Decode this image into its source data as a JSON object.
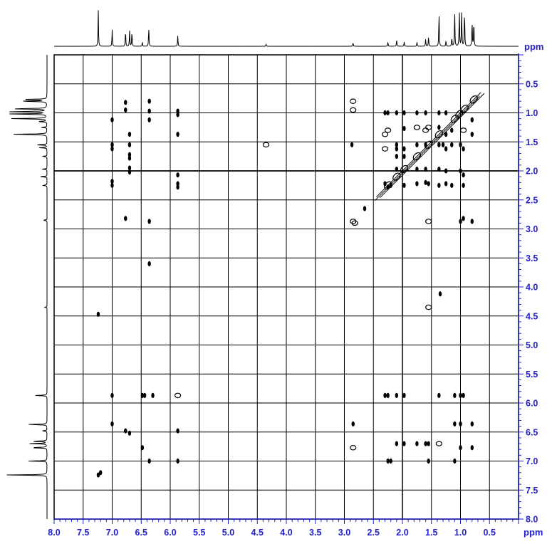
{
  "chart_data": {
    "type": "heatmap",
    "subtype": "2D NMR COSY contour plot with 1D projections",
    "x_axis": {
      "label": "ppm",
      "range": [
        8.0,
        0.0
      ],
      "ticks": [
        8.0,
        7.5,
        7.0,
        6.5,
        6.0,
        5.5,
        5.0,
        4.5,
        4.0,
        3.5,
        3.0,
        2.5,
        2.0,
        1.5,
        1.0,
        0.5
      ],
      "tick_labels": [
        "8.0",
        "7.5",
        "7.0",
        "6.5",
        "6.0",
        "5.5",
        "5.0",
        "4.5",
        "4.0",
        "3.5",
        "3.0",
        "2.5",
        "2.0",
        "1.5",
        "1.0",
        "0.5"
      ]
    },
    "y_axis": {
      "label": "ppm",
      "range": [
        0.0,
        8.0
      ],
      "ticks": [
        0.5,
        1.0,
        1.5,
        2.0,
        2.5,
        3.0,
        3.5,
        4.0,
        4.5,
        5.0,
        5.5,
        6.0,
        6.5,
        7.0,
        7.5,
        8.0
      ],
      "tick_labels": [
        "0.5",
        "1.0",
        "1.5",
        "2.0",
        "2.5",
        "3.0",
        "3.5",
        "4.0",
        "4.5",
        "5.0",
        "5.5",
        "6.0",
        "6.5",
        "7.0",
        "7.5",
        "8.0"
      ]
    },
    "grid": true,
    "axis_color": "#2222cc",
    "contour_color": "#000000",
    "projection_peaks": [
      {
        "ppm": 7.24,
        "h": 1.0
      },
      {
        "ppm": 7.0,
        "h": 0.45
      },
      {
        "ppm": 6.77,
        "h": 0.45
      },
      {
        "ppm": 6.7,
        "h": 0.42
      },
      {
        "ppm": 6.66,
        "h": 0.42
      },
      {
        "ppm": 6.48,
        "h": 0.12
      },
      {
        "ppm": 6.37,
        "h": 0.52
      },
      {
        "ppm": 5.87,
        "h": 0.3
      },
      {
        "ppm": 4.35,
        "h": 0.05
      },
      {
        "ppm": 2.85,
        "h": 0.1
      },
      {
        "ppm": 2.25,
        "h": 0.12
      },
      {
        "ppm": 2.1,
        "h": 0.18
      },
      {
        "ppm": 1.97,
        "h": 0.12
      },
      {
        "ppm": 1.75,
        "h": 0.12
      },
      {
        "ppm": 1.6,
        "h": 0.2
      },
      {
        "ppm": 1.55,
        "h": 0.28
      },
      {
        "ppm": 1.37,
        "h": 0.95
      },
      {
        "ppm": 1.25,
        "h": 0.15
      },
      {
        "ppm": 1.15,
        "h": 0.25
      },
      {
        "ppm": 1.1,
        "h": 1.0
      },
      {
        "ppm": 1.02,
        "h": 1.0
      },
      {
        "ppm": 0.98,
        "h": 1.0
      },
      {
        "ppm": 0.93,
        "h": 1.0
      },
      {
        "ppm": 0.8,
        "h": 0.72
      },
      {
        "ppm": 0.77,
        "h": 0.72
      }
    ],
    "cross_peaks": [
      {
        "x": 6.77,
        "y": 0.82
      },
      {
        "x": 6.77,
        "y": 0.95
      },
      {
        "x": 6.36,
        "y": 0.8
      },
      {
        "x": 6.36,
        "y": 0.97
      },
      {
        "x": 5.87,
        "y": 0.97
      },
      {
        "x": 5.87,
        "y": 1.03
      },
      {
        "x": 7.0,
        "y": 1.12
      },
      {
        "x": 6.7,
        "y": 1.37
      },
      {
        "x": 6.36,
        "y": 1.12
      },
      {
        "x": 5.87,
        "y": 1.37
      },
      {
        "x": 7.0,
        "y": 1.55
      },
      {
        "x": 7.0,
        "y": 1.62
      },
      {
        "x": 6.7,
        "y": 1.55
      },
      {
        "x": 6.7,
        "y": 1.72
      },
      {
        "x": 6.7,
        "y": 1.78
      },
      {
        "x": 6.7,
        "y": 1.95
      },
      {
        "x": 6.7,
        "y": 2.02
      },
      {
        "x": 7.0,
        "y": 2.18
      },
      {
        "x": 7.0,
        "y": 2.25
      },
      {
        "x": 5.87,
        "y": 2.07
      },
      {
        "x": 5.87,
        "y": 2.22
      },
      {
        "x": 5.87,
        "y": 2.28
      },
      {
        "x": 6.77,
        "y": 2.82
      },
      {
        "x": 6.36,
        "y": 2.87
      },
      {
        "x": 6.36,
        "y": 3.6
      },
      {
        "x": 7.24,
        "y": 4.47
      },
      {
        "x": 4.35,
        "y": 1.55,
        "open": true
      },
      {
        "x": 7.0,
        "y": 5.87
      },
      {
        "x": 6.48,
        "y": 5.87
      },
      {
        "x": 6.44,
        "y": 5.87
      },
      {
        "x": 6.3,
        "y": 5.87
      },
      {
        "x": 5.87,
        "y": 5.87,
        "open": true
      },
      {
        "x": 7.0,
        "y": 6.36
      },
      {
        "x": 6.77,
        "y": 6.48
      },
      {
        "x": 6.7,
        "y": 6.52
      },
      {
        "x": 5.87,
        "y": 6.48
      },
      {
        "x": 6.48,
        "y": 6.77
      },
      {
        "x": 6.36,
        "y": 7.0
      },
      {
        "x": 5.87,
        "y": 7.0
      },
      {
        "x": 7.24,
        "y": 7.24
      },
      {
        "x": 7.2,
        "y": 7.2
      },
      {
        "x": 2.85,
        "y": 0.8,
        "open": true
      },
      {
        "x": 2.85,
        "y": 0.95,
        "open": true
      },
      {
        "x": 2.87,
        "y": 1.55
      },
      {
        "x": 2.85,
        "y": 2.87,
        "open": true
      },
      {
        "x": 2.82,
        "y": 2.9,
        "open": true
      },
      {
        "x": 2.65,
        "y": 2.65
      },
      {
        "x": 2.85,
        "y": 6.36
      },
      {
        "x": 2.85,
        "y": 6.77,
        "open": true
      },
      {
        "x": 2.3,
        "y": 1.0
      },
      {
        "x": 2.25,
        "y": 1.0
      },
      {
        "x": 2.1,
        "y": 1.0
      },
      {
        "x": 1.97,
        "y": 1.0
      },
      {
        "x": 1.75,
        "y": 1.0
      },
      {
        "x": 1.6,
        "y": 1.0
      },
      {
        "x": 1.37,
        "y": 1.0
      },
      {
        "x": 1.25,
        "y": 1.0
      },
      {
        "x": 2.3,
        "y": 1.37,
        "open": true
      },
      {
        "x": 2.25,
        "y": 1.3,
        "open": true
      },
      {
        "x": 1.97,
        "y": 1.27
      },
      {
        "x": 1.75,
        "y": 1.25,
        "open": true
      },
      {
        "x": 1.6,
        "y": 1.3,
        "open": true
      },
      {
        "x": 1.55,
        "y": 1.25,
        "open": true
      },
      {
        "x": 1.37,
        "y": 1.25
      },
      {
        "x": 1.25,
        "y": 1.37
      },
      {
        "x": 1.15,
        "y": 1.3
      },
      {
        "x": 0.95,
        "y": 1.3,
        "open": true
      },
      {
        "x": 0.8,
        "y": 1.12
      },
      {
        "x": 0.8,
        "y": 1.37
      },
      {
        "x": 2.3,
        "y": 1.62,
        "open": true
      },
      {
        "x": 2.1,
        "y": 1.55
      },
      {
        "x": 2.1,
        "y": 1.62
      },
      {
        "x": 1.97,
        "y": 1.62
      },
      {
        "x": 1.75,
        "y": 1.55
      },
      {
        "x": 1.6,
        "y": 1.55
      },
      {
        "x": 1.37,
        "y": 1.55
      },
      {
        "x": 1.3,
        "y": 1.55
      },
      {
        "x": 1.25,
        "y": 1.62
      },
      {
        "x": 1.15,
        "y": 1.55
      },
      {
        "x": 1.0,
        "y": 1.55
      },
      {
        "x": 0.95,
        "y": 1.62
      },
      {
        "x": 2.1,
        "y": 1.75
      },
      {
        "x": 2.1,
        "y": 1.97
      },
      {
        "x": 1.97,
        "y": 1.75
      },
      {
        "x": 1.75,
        "y": 1.97
      },
      {
        "x": 1.6,
        "y": 1.97
      },
      {
        "x": 1.37,
        "y": 1.97
      },
      {
        "x": 1.25,
        "y": 2.0
      },
      {
        "x": 1.0,
        "y": 2.0
      },
      {
        "x": 0.95,
        "y": 2.07
      },
      {
        "x": 2.3,
        "y": 2.22
      },
      {
        "x": 2.25,
        "y": 2.28
      },
      {
        "x": 2.2,
        "y": 2.25
      },
      {
        "x": 1.97,
        "y": 2.25
      },
      {
        "x": 1.75,
        "y": 2.22
      },
      {
        "x": 1.6,
        "y": 2.2
      },
      {
        "x": 1.55,
        "y": 2.22
      },
      {
        "x": 1.37,
        "y": 2.25
      },
      {
        "x": 1.25,
        "y": 2.22
      },
      {
        "x": 1.15,
        "y": 2.25
      },
      {
        "x": 0.95,
        "y": 2.25
      },
      {
        "x": 1.55,
        "y": 2.87,
        "open": true
      },
      {
        "x": 1.0,
        "y": 2.87
      },
      {
        "x": 0.95,
        "y": 2.82
      },
      {
        "x": 0.8,
        "y": 2.87
      },
      {
        "x": 1.55,
        "y": 4.35,
        "open": true
      },
      {
        "x": 1.35,
        "y": 4.12
      },
      {
        "x": 2.3,
        "y": 5.87
      },
      {
        "x": 2.25,
        "y": 5.87
      },
      {
        "x": 2.1,
        "y": 5.87
      },
      {
        "x": 1.97,
        "y": 5.87
      },
      {
        "x": 1.37,
        "y": 5.87
      },
      {
        "x": 1.1,
        "y": 5.87
      },
      {
        "x": 1.0,
        "y": 5.87
      },
      {
        "x": 0.95,
        "y": 5.87
      },
      {
        "x": 1.1,
        "y": 6.36
      },
      {
        "x": 1.0,
        "y": 6.36
      },
      {
        "x": 0.8,
        "y": 6.36
      },
      {
        "x": 2.1,
        "y": 6.7
      },
      {
        "x": 1.97,
        "y": 6.7
      },
      {
        "x": 1.75,
        "y": 6.7
      },
      {
        "x": 1.6,
        "y": 6.7
      },
      {
        "x": 1.55,
        "y": 6.7
      },
      {
        "x": 1.37,
        "y": 6.7,
        "open": true
      },
      {
        "x": 1.0,
        "y": 6.77
      },
      {
        "x": 0.8,
        "y": 6.77
      },
      {
        "x": 2.25,
        "y": 7.0
      },
      {
        "x": 2.2,
        "y": 7.0
      },
      {
        "x": 1.55,
        "y": 7.0
      },
      {
        "x": 1.1,
        "y": 7.0
      }
    ],
    "diagonal_peaks": [
      {
        "ppm": 0.77
      },
      {
        "ppm": 0.93
      },
      {
        "ppm": 1.02
      },
      {
        "ppm": 1.1
      },
      {
        "ppm": 1.37
      },
      {
        "ppm": 1.55
      },
      {
        "ppm": 1.75
      },
      {
        "ppm": 1.97
      },
      {
        "ppm": 2.1
      },
      {
        "ppm": 2.25
      }
    ]
  }
}
